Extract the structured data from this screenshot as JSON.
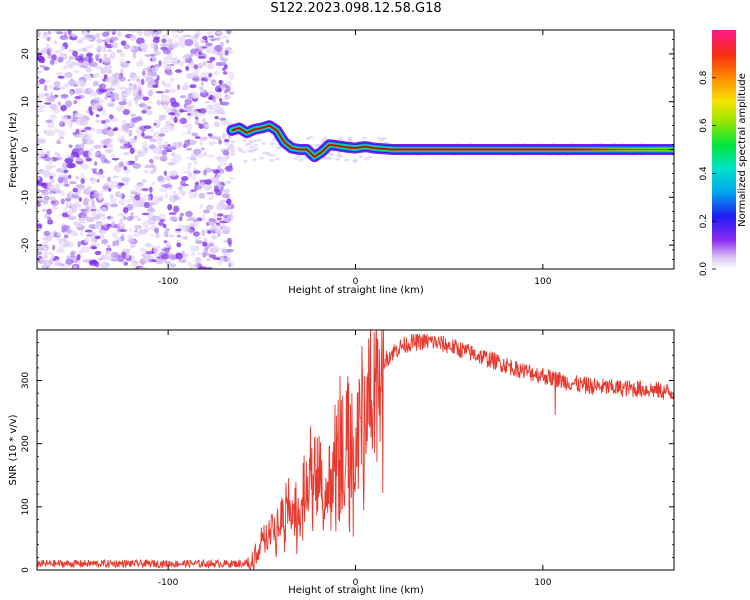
{
  "title": "S122.2023.098.12.58.G18",
  "chart_data": [
    {
      "type": "heatmap",
      "name": "spectrogram",
      "xlabel": "Height of straight line (km)",
      "ylabel": "Frequency (Hz)",
      "xlim": [
        -170,
        170
      ],
      "ylim": [
        -25,
        25
      ],
      "xticks": [
        -100,
        0,
        100
      ],
      "yticks": [
        -20,
        -10,
        0,
        10,
        20
      ],
      "grid": false,
      "noise_region_x": [
        -170,
        -66
      ],
      "signal_ridge": [
        {
          "x": -66,
          "y": 4
        },
        {
          "x": -62,
          "y": 4.5
        },
        {
          "x": -58,
          "y": 3.5
        },
        {
          "x": -54,
          "y": 4.2
        },
        {
          "x": -50,
          "y": 4.5
        },
        {
          "x": -46,
          "y": 5
        },
        {
          "x": -42,
          "y": 4
        },
        {
          "x": -38,
          "y": 1.5
        },
        {
          "x": -34,
          "y": 0.3
        },
        {
          "x": -30,
          "y": 0
        },
        {
          "x": -26,
          "y": 0
        },
        {
          "x": -22,
          "y": -1.5
        },
        {
          "x": -18,
          "y": -0.5
        },
        {
          "x": -14,
          "y": 1
        },
        {
          "x": -10,
          "y": 0.8
        },
        {
          "x": -5,
          "y": 0.5
        },
        {
          "x": 0,
          "y": 0.3
        },
        {
          "x": 5,
          "y": 0.6
        },
        {
          "x": 10,
          "y": 0.3
        },
        {
          "x": 20,
          "y": 0
        },
        {
          "x": 170,
          "y": 0
        }
      ],
      "colorbar": {
        "label": "Normalized spectral amplitude",
        "ticks": [
          "0.0",
          "0.2",
          "0.4",
          "0.6",
          "0.8"
        ],
        "range": [
          0,
          1
        ]
      }
    },
    {
      "type": "line",
      "name": "snr",
      "xlabel": "Height of straight line (km)",
      "ylabel": "SNR (10 * v/v)",
      "xlim": [
        -170,
        170
      ],
      "ylim": [
        0,
        380
      ],
      "xticks": [
        -100,
        0,
        100
      ],
      "yticks": [
        0,
        100,
        200,
        300
      ],
      "grid": false,
      "series_color": "#e8392f",
      "envelope": [
        {
          "x": -170,
          "y": 10
        },
        {
          "x": -60,
          "y": 10
        },
        {
          "x": -55,
          "y": 15
        },
        {
          "x": -50,
          "y": 50
        },
        {
          "x": -45,
          "y": 60
        },
        {
          "x": -40,
          "y": 80
        },
        {
          "x": -35,
          "y": 120
        },
        {
          "x": -30,
          "y": 90
        },
        {
          "x": -25,
          "y": 160
        },
        {
          "x": -20,
          "y": 150
        },
        {
          "x": -15,
          "y": 120
        },
        {
          "x": -10,
          "y": 210
        },
        {
          "x": -5,
          "y": 220
        },
        {
          "x": 0,
          "y": 180
        },
        {
          "x": 5,
          "y": 280
        },
        {
          "x": 10,
          "y": 300
        },
        {
          "x": 15,
          "y": 330
        },
        {
          "x": 20,
          "y": 345
        },
        {
          "x": 25,
          "y": 355
        },
        {
          "x": 30,
          "y": 360
        },
        {
          "x": 40,
          "y": 362
        },
        {
          "x": 50,
          "y": 355
        },
        {
          "x": 60,
          "y": 345
        },
        {
          "x": 70,
          "y": 335
        },
        {
          "x": 80,
          "y": 325
        },
        {
          "x": 90,
          "y": 315
        },
        {
          "x": 100,
          "y": 308
        },
        {
          "x": 110,
          "y": 300
        },
        {
          "x": 120,
          "y": 293
        },
        {
          "x": 130,
          "y": 290
        },
        {
          "x": 140,
          "y": 288
        },
        {
          "x": 150,
          "y": 287
        },
        {
          "x": 160,
          "y": 285
        },
        {
          "x": 170,
          "y": 280
        }
      ]
    }
  ]
}
